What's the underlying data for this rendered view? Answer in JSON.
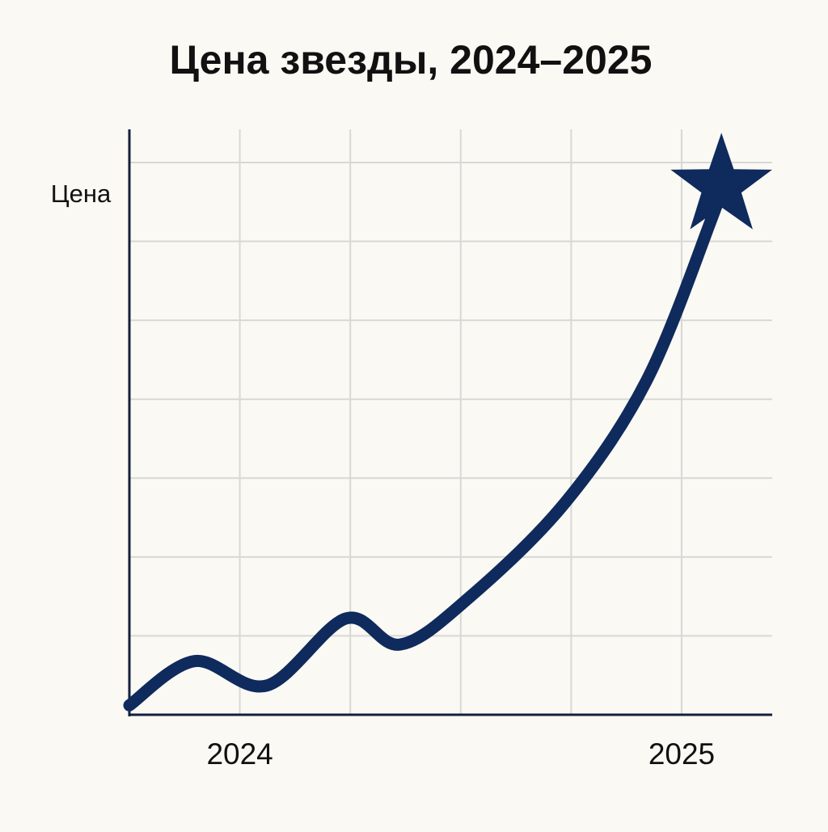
{
  "chart_data": {
    "type": "line",
    "title": "Цена звезды, 2024–2025",
    "y_label": "Цена",
    "x": [
      2023.75,
      2023.897,
      2024.061,
      2024.24,
      2024.363,
      2024.518,
      2024.738,
      2024.921,
      2025.068,
      2025.09
    ],
    "series": [
      {
        "color": "#0f2a5c",
        "values": [
          0.12,
          0.68,
          0.37,
          1.22,
          0.89,
          1.48,
          2.7,
          4.24,
          6.29,
          6.7
        ]
      }
    ],
    "end_marker": "star",
    "xlim": [
      2023.75,
      2025.205
    ],
    "xticks": [
      2024,
      2025
    ],
    "xgrid": [
      2024,
      2024.25,
      2024.5,
      2024.75,
      2025
    ],
    "ylim": [
      0,
      7.42
    ],
    "ygrid": [
      1,
      2,
      3,
      4,
      5,
      6,
      7
    ],
    "grid": true
  }
}
